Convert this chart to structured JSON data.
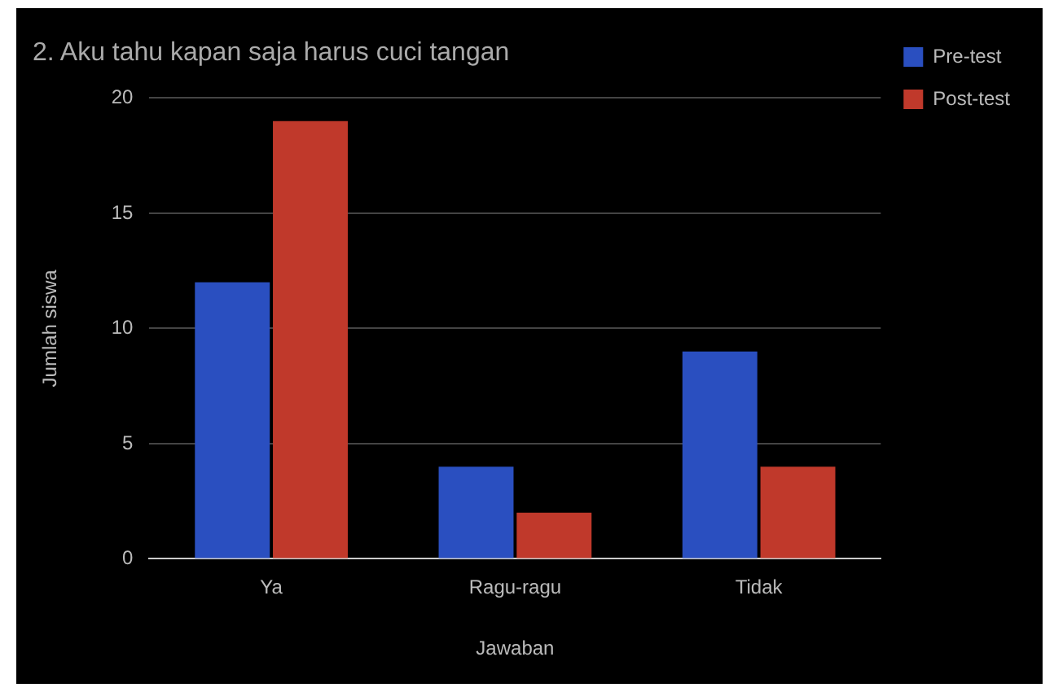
{
  "chart_data": {
    "type": "bar",
    "title": "2. Aku tahu kapan saja harus cuci tangan",
    "xlabel": "Jawaban",
    "ylabel": "Jumlah siswa",
    "categories": [
      "Ya",
      "Ragu-ragu",
      "Tidak"
    ],
    "series": [
      {
        "name": "Pre-test",
        "color": "#2a4fc0",
        "values": [
          12,
          4,
          9
        ]
      },
      {
        "name": "Post-test",
        "color": "#c0392b",
        "values": [
          19,
          2,
          4
        ]
      }
    ],
    "ylim": [
      0,
      20
    ],
    "yticks": [
      0,
      5,
      10,
      15,
      20
    ],
    "grid": "y",
    "legend": "right"
  }
}
